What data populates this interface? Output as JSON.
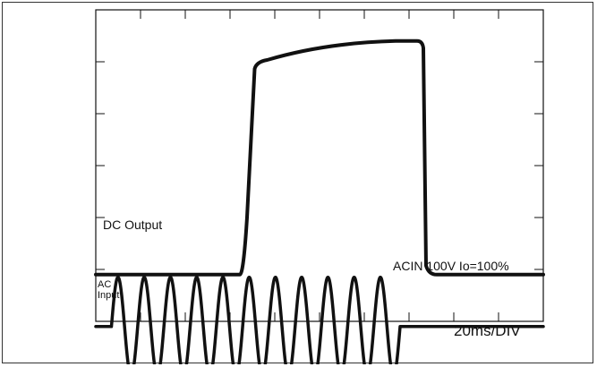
{
  "chart_data": {
    "type": "line",
    "title": "",
    "xlabel": "",
    "ylabel": "",
    "timebase": "20ms/DIV",
    "condition": "ACIN 100V Io=100%",
    "grid": {
      "x_divisions": 10,
      "y_divisions": 6,
      "x_minor_ticks": 5,
      "y_minor_ticks": 5
    },
    "series": [
      {
        "name": "DC Output",
        "shape": "step-pulse",
        "x_div": [
          0,
          3.3,
          3.38,
          3.55,
          6.7,
          7.3,
          7.38,
          7.55,
          10
        ],
        "y_div": [
          5.1,
          5.1,
          4.0,
          1.0,
          0.6,
          0.6,
          1.0,
          5.1,
          5.1
        ]
      },
      {
        "name": "AC Input",
        "label_lines": [
          "AC",
          "Input"
        ],
        "shape": "sine-burst",
        "baseline_div": 6.1,
        "amplitude_div": 0.95,
        "cycles": 11,
        "start_div": 0.35,
        "end_div": 6.8
      }
    ]
  }
}
